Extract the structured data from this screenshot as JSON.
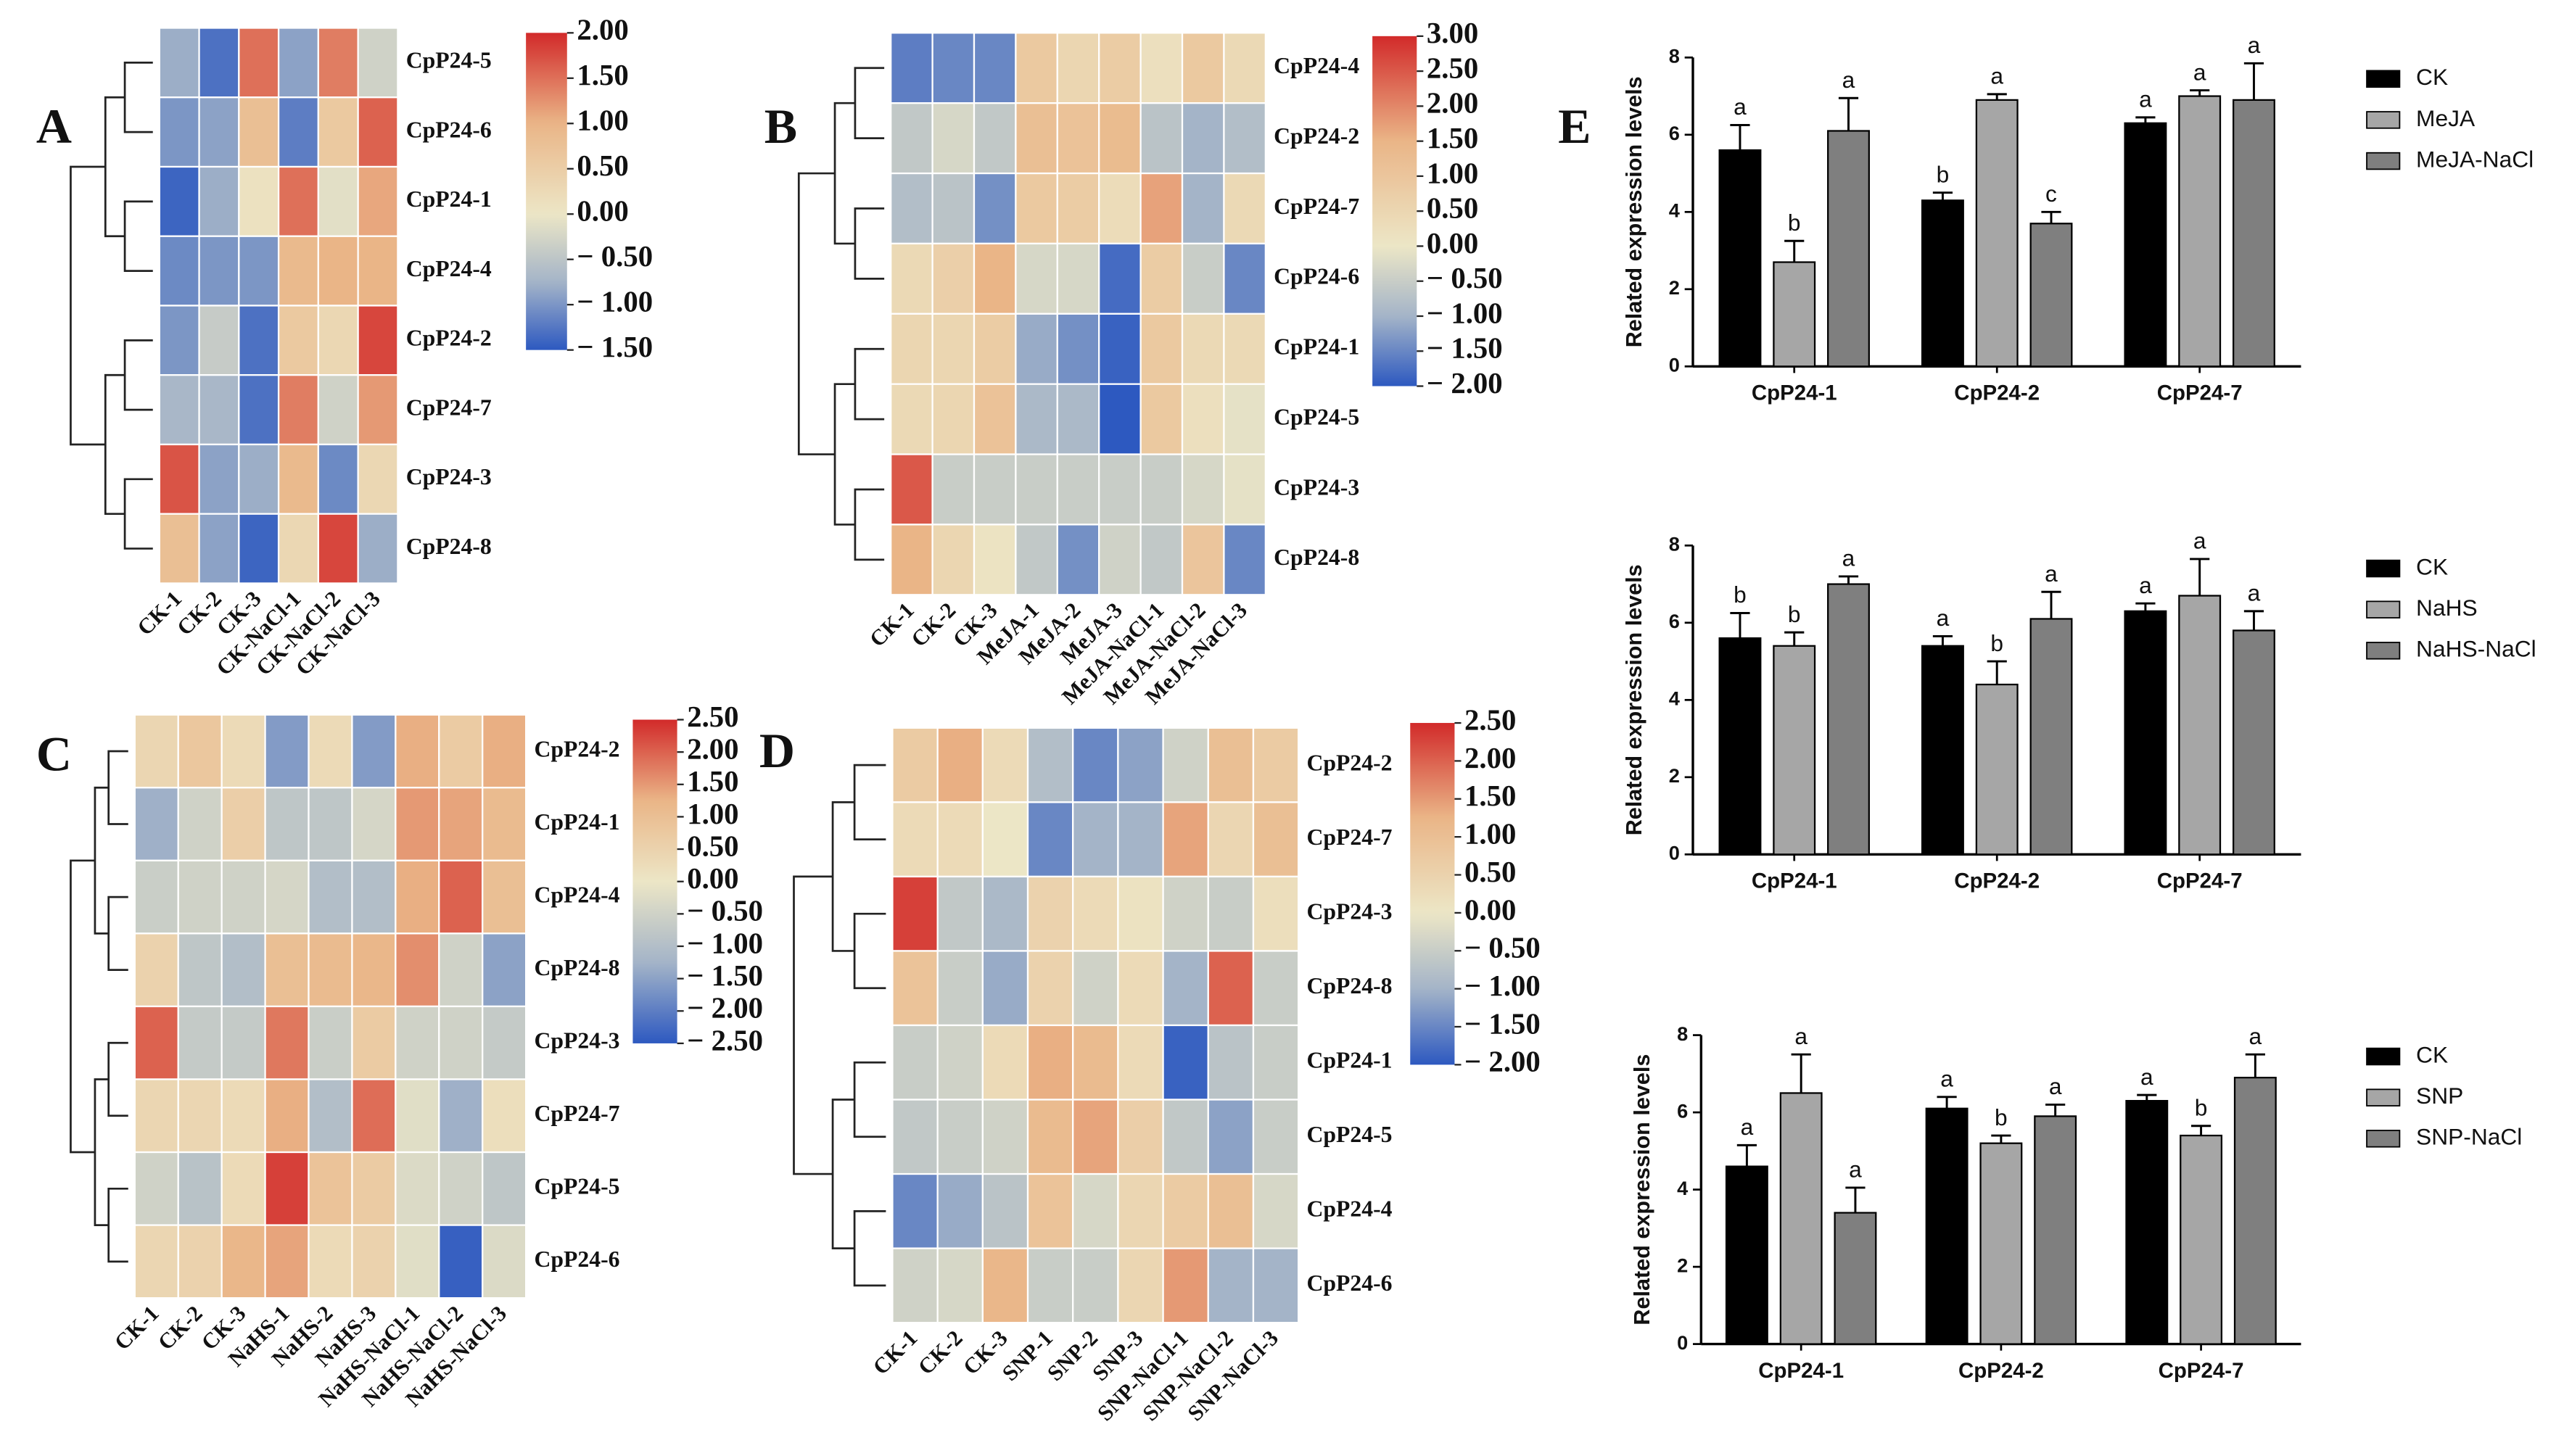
{
  "chart_data": [
    {
      "type": "heatmap",
      "panel": "A",
      "rows": [
        "CpP24-5",
        "CpP24-6",
        "CpP24-1",
        "CpP24-4",
        "CpP24-2",
        "CpP24-7",
        "CpP24-3",
        "CpP24-8"
      ],
      "columns": [
        "CK-1",
        "CK-2",
        "CK-3",
        "CK-NaCl-1",
        "CK-NaCl-2",
        "CK-NaCl-3"
      ],
      "values": [
        [
          -0.8,
          -1.3,
          1.5,
          -0.9,
          1.4,
          -0.3
        ],
        [
          -1.0,
          -0.9,
          0.8,
          -1.2,
          0.6,
          1.6
        ],
        [
          -1.4,
          -0.8,
          0.1,
          1.5,
          -0.1,
          1.1
        ],
        [
          -1.1,
          -1.0,
          -1.0,
          0.9,
          1.0,
          1.0
        ],
        [
          -1.0,
          -0.4,
          -1.3,
          0.6,
          0.3,
          1.8
        ],
        [
          -0.7,
          -0.7,
          -1.3,
          1.4,
          -0.3,
          1.2
        ],
        [
          1.7,
          -0.9,
          -0.8,
          0.9,
          -1.1,
          0.3
        ],
        [
          0.8,
          -0.9,
          -1.4,
          0.3,
          1.8,
          -0.8
        ]
      ],
      "vlim": [
        -1.5,
        2
      ],
      "cticks": [
        {
          "value": 2,
          "label": "2.00"
        },
        {
          "value": 1.5,
          "label": "1.50"
        },
        {
          "value": 1,
          "label": "1.00"
        },
        {
          "value": 0.5,
          "label": "0.50"
        },
        {
          "value": 0,
          "label": "0.00"
        },
        {
          "value": -0.5,
          "label": "− 0.50"
        },
        {
          "value": -1,
          "label": "− 1.00"
        },
        {
          "value": -1.5,
          "label": "− 1.50"
        }
      ],
      "colors": [
        "#2d59c0",
        "#a4b4c8",
        "#ece6c6",
        "#eab587",
        "#d22a2a"
      ]
    },
    {
      "type": "heatmap",
      "panel": "B",
      "rows": [
        "CpP24-4",
        "CpP24-2",
        "CpP24-7",
        "CpP24-6",
        "CpP24-1",
        "CpP24-5",
        "CpP24-3",
        "CpP24-8"
      ],
      "columns": [
        "CK-1",
        "CK-2",
        "CK-3",
        "MeJA-1",
        "MeJA-2",
        "MeJA-3",
        "MeJA-NaCl-1",
        "MeJA-NaCl-2",
        "MeJA-NaCl-3"
      ],
      "values": [
        [
          -1.6,
          -1.5,
          -1.5,
          0.9,
          0.5,
          0.8,
          0.2,
          0.9,
          0.4
        ],
        [
          -0.6,
          -0.3,
          -0.6,
          1.2,
          1.1,
          1.3,
          -0.7,
          -1.0,
          -0.8
        ],
        [
          -0.8,
          -0.7,
          -1.4,
          0.9,
          0.8,
          0.3,
          1.7,
          -1.0,
          0.4
        ],
        [
          0.4,
          0.7,
          1.5,
          -0.3,
          -0.3,
          -1.8,
          0.8,
          -0.5,
          -1.5
        ],
        [
          0.5,
          0.5,
          0.8,
          -1.1,
          -1.4,
          -1.9,
          0.9,
          0.4,
          0.4
        ],
        [
          0.4,
          0.5,
          1.1,
          -0.9,
          -0.9,
          -2.0,
          0.9,
          0.2,
          -0.1
        ],
        [
          2.5,
          -0.5,
          -0.5,
          -0.5,
          -0.5,
          -0.5,
          -0.5,
          -0.3,
          -0.1
        ],
        [
          1.5,
          0.5,
          0.1,
          -0.6,
          -1.4,
          -0.4,
          -0.6,
          1.0,
          -1.5
        ]
      ],
      "vlim": [
        -2,
        3
      ],
      "cticks": [
        {
          "value": 3,
          "label": "3.00"
        },
        {
          "value": 2.5,
          "label": "2.50"
        },
        {
          "value": 2,
          "label": "2.00"
        },
        {
          "value": 1.5,
          "label": "1.50"
        },
        {
          "value": 1,
          "label": "1.00"
        },
        {
          "value": 0.5,
          "label": "0.50"
        },
        {
          "value": 0,
          "label": "0.00"
        },
        {
          "value": -0.5,
          "label": "− 0.50"
        },
        {
          "value": -1,
          "label": "− 1.00"
        },
        {
          "value": -1.5,
          "label": "− 1.50"
        },
        {
          "value": -2,
          "label": "− 2.00"
        }
      ],
      "colors": [
        "#2d59c0",
        "#a4b4c8",
        "#ece6c6",
        "#eab587",
        "#d22a2a"
      ]
    },
    {
      "type": "heatmap",
      "panel": "C",
      "rows": [
        "CpP24-2",
        "CpP24-1",
        "CpP24-4",
        "CpP24-8",
        "CpP24-3",
        "CpP24-7",
        "CpP24-5",
        "CpP24-6"
      ],
      "columns": [
        "CK-1",
        "CK-2",
        "CK-3",
        "NaHS-1",
        "NaHS-2",
        "NaHS-3",
        "NaHS-NaCl-1",
        "NaHS-NaCl-2",
        "NaHS-NaCl-3"
      ],
      "values": [
        [
          0.4,
          0.8,
          0.3,
          -1.6,
          0.3,
          -1.6,
          1.3,
          0.7,
          1.3
        ],
        [
          -1.3,
          -0.5,
          0.6,
          -0.8,
          -0.8,
          -0.4,
          1.5,
          1.4,
          1.1
        ],
        [
          -0.6,
          -0.5,
          -0.5,
          -0.4,
          -1.0,
          -1.0,
          1.3,
          2.0,
          1.0
        ],
        [
          0.5,
          -0.8,
          -1.0,
          1.0,
          1.1,
          1.2,
          1.6,
          -0.5,
          -1.5
        ],
        [
          2.0,
          -0.7,
          -0.7,
          1.8,
          -0.6,
          0.7,
          -0.5,
          -0.5,
          -0.7
        ],
        [
          0.4,
          0.4,
          0.3,
          1.3,
          -1.0,
          1.9,
          -0.2,
          -1.3,
          0.2
        ],
        [
          -0.5,
          -0.9,
          0.3,
          2.3,
          0.9,
          0.7,
          -0.3,
          -0.5,
          -0.8
        ],
        [
          0.4,
          0.5,
          1.2,
          1.4,
          0.3,
          0.5,
          -0.2,
          -2.4,
          -0.3
        ]
      ],
      "vlim": [
        -2.5,
        2.5
      ],
      "cticks": [
        {
          "value": 2.5,
          "label": "2.50"
        },
        {
          "value": 2,
          "label": "2.00"
        },
        {
          "value": 1.5,
          "label": "1.50"
        },
        {
          "value": 1,
          "label": "1.00"
        },
        {
          "value": 0.5,
          "label": "0.50"
        },
        {
          "value": 0,
          "label": "0.00"
        },
        {
          "value": -0.5,
          "label": "− 0.50"
        },
        {
          "value": -1,
          "label": "− 1.00"
        },
        {
          "value": -1.5,
          "label": "− 1.50"
        },
        {
          "value": -2,
          "label": "− 2.00"
        },
        {
          "value": -2.5,
          "label": "− 2.50"
        }
      ],
      "colors": [
        "#2d59c0",
        "#a4b4c8",
        "#ece6c6",
        "#eab587",
        "#d22a2a"
      ]
    },
    {
      "type": "heatmap",
      "panel": "D",
      "rows": [
        "CpP24-2",
        "CpP24-7",
        "CpP24-3",
        "CpP24-8",
        "CpP24-1",
        "CpP24-5",
        "CpP24-4",
        "CpP24-6"
      ],
      "columns": [
        "CK-1",
        "CK-2",
        "CK-3",
        "SNP-1",
        "SNP-2",
        "SNP-3",
        "SNP-NaCl-1",
        "SNP-NaCl-2",
        "SNP-NaCl-3"
      ],
      "values": [
        [
          0.7,
          1.3,
          0.3,
          -0.8,
          -1.5,
          -1.2,
          -0.4,
          1.0,
          0.7
        ],
        [
          0.3,
          0.3,
          0.0,
          -1.5,
          -1.0,
          -1.0,
          1.4,
          0.4,
          1.0
        ],
        [
          2.3,
          -0.6,
          -0.9,
          0.5,
          0.3,
          0.1,
          -0.4,
          -0.5,
          0.2
        ],
        [
          0.9,
          -0.5,
          -1.1,
          0.5,
          -0.4,
          0.3,
          -1.0,
          2.0,
          -0.5
        ],
        [
          -0.5,
          -0.4,
          0.3,
          1.3,
          1.1,
          0.3,
          -1.9,
          -0.7,
          -0.5
        ],
        [
          -0.6,
          -0.5,
          -0.4,
          1.1,
          1.4,
          0.6,
          -0.6,
          -1.2,
          -0.5
        ],
        [
          -1.5,
          -1.1,
          -0.7,
          0.9,
          -0.3,
          0.4,
          0.7,
          1.0,
          -0.3
        ],
        [
          -0.4,
          -0.3,
          1.2,
          -0.5,
          -0.5,
          0.4,
          1.5,
          -1.0,
          -1.0
        ]
      ],
      "vlim": [
        -2,
        2.5
      ],
      "cticks": [
        {
          "value": 2.5,
          "label": "2.50"
        },
        {
          "value": 2,
          "label": "2.00"
        },
        {
          "value": 1.5,
          "label": "1.50"
        },
        {
          "value": 1,
          "label": "1.00"
        },
        {
          "value": 0.5,
          "label": "0.50"
        },
        {
          "value": 0,
          "label": "0.00"
        },
        {
          "value": -0.5,
          "label": "− 0.50"
        },
        {
          "value": -1,
          "label": "− 1.00"
        },
        {
          "value": -1.5,
          "label": "− 1.50"
        },
        {
          "value": -2,
          "label": "− 2.00"
        }
      ],
      "colors": [
        "#2d59c0",
        "#a4b4c8",
        "#ece6c6",
        "#eab587",
        "#d22a2a"
      ]
    },
    {
      "type": "bar",
      "panel": "E",
      "ylabel": "Related expression levels",
      "categories": [
        "CpP24-1",
        "CpP24-2",
        "CpP24-7"
      ],
      "ylim": [
        0,
        8
      ],
      "yticks": [
        0,
        2,
        4,
        6,
        8
      ],
      "series": [
        {
          "name": "CK",
          "color": "#000000",
          "values": [
            5.6,
            4.3,
            6.3
          ],
          "errors": [
            0.65,
            0.2,
            0.15
          ],
          "letters": [
            "a",
            "b",
            "a"
          ]
        },
        {
          "name": "MeJA",
          "color": "#a6a6a6",
          "values": [
            2.7,
            6.9,
            7.0
          ],
          "errors": [
            0.55,
            0.15,
            0.15
          ],
          "letters": [
            "b",
            "a",
            "a"
          ]
        },
        {
          "name": "MeJA-NaCl",
          "color": "#7f7f7f",
          "values": [
            6.1,
            3.7,
            6.9
          ],
          "errors": [
            0.85,
            0.3,
            0.95
          ],
          "letters": [
            "a",
            "c",
            "a"
          ]
        }
      ]
    },
    {
      "type": "bar",
      "ylabel": "Related expression levels",
      "categories": [
        "CpP24-1",
        "CpP24-2",
        "CpP24-7"
      ],
      "ylim": [
        0,
        8
      ],
      "yticks": [
        0,
        2,
        4,
        6,
        8
      ],
      "series": [
        {
          "name": "CK",
          "color": "#000000",
          "values": [
            5.6,
            5.4,
            6.3
          ],
          "errors": [
            0.65,
            0.25,
            0.2
          ],
          "letters": [
            "b",
            "a",
            "a"
          ]
        },
        {
          "name": "NaHS",
          "color": "#a6a6a6",
          "values": [
            5.4,
            4.4,
            6.7
          ],
          "errors": [
            0.35,
            0.6,
            0.95
          ],
          "letters": [
            "b",
            "b",
            "a"
          ]
        },
        {
          "name": "NaHS-NaCl",
          "color": "#7f7f7f",
          "values": [
            7.0,
            6.1,
            5.8
          ],
          "errors": [
            0.2,
            0.7,
            0.5
          ],
          "letters": [
            "a",
            "a",
            "a"
          ]
        }
      ]
    },
    {
      "type": "bar",
      "ylabel": "Related expression levels",
      "categories": [
        "CpP24-1",
        "CpP24-2",
        "CpP24-7"
      ],
      "ylim": [
        0,
        8
      ],
      "yticks": [
        0,
        2,
        4,
        6,
        8
      ],
      "series": [
        {
          "name": "CK",
          "color": "#000000",
          "values": [
            4.6,
            6.1,
            6.3
          ],
          "errors": [
            0.55,
            0.3,
            0.15
          ],
          "letters": [
            "a",
            "a",
            "a"
          ]
        },
        {
          "name": "SNP",
          "color": "#a6a6a6",
          "values": [
            6.5,
            5.2,
            5.4
          ],
          "errors": [
            1.0,
            0.2,
            0.25
          ],
          "letters": [
            "a",
            "b",
            "b"
          ]
        },
        {
          "name": "SNP-NaCl",
          "color": "#7f7f7f",
          "values": [
            3.4,
            5.9,
            6.9
          ],
          "errors": [
            0.65,
            0.3,
            0.6
          ],
          "letters": [
            "a",
            "a",
            "a"
          ]
        }
      ]
    }
  ]
}
